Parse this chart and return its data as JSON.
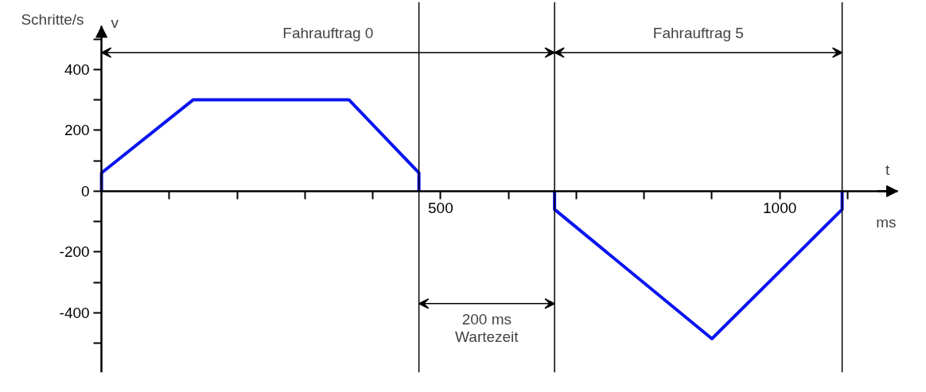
{
  "chart_data": {
    "type": "line",
    "xlabel": "t",
    "ylabel": "v",
    "annotations": [
      "Schritte/s",
      "ms",
      "Fahrauftrag 0",
      "Fahrauftrag 5",
      "200 ms\nWartezeit"
    ],
    "xlim": [
      0,
      1174
    ],
    "ylim": [
      -596,
      542
    ],
    "xticks": [
      {
        "value": 100,
        "label": null
      },
      {
        "value": 200,
        "label": null
      },
      {
        "value": 300,
        "label": null
      },
      {
        "value": 400,
        "label": null
      },
      500,
      {
        "value": 600,
        "label": null
      },
      {
        "value": 700,
        "label": null
      },
      {
        "value": 800,
        "label": null
      },
      {
        "value": 900,
        "label": null
      },
      1000,
      {
        "value": 1100,
        "label": null
      }
    ],
    "yticks": [
      {
        "value": -500,
        "label": null
      },
      -400,
      {
        "value": -300,
        "label": null
      },
      -200,
      {
        "value": -100,
        "label": null
      },
      0,
      {
        "value": 100,
        "label": null
      },
      200,
      {
        "value": 300,
        "label": null
      },
      400,
      {
        "value": 500,
        "label": null
      }
    ],
    "series": [
      {
        "color": "#0a14f0",
        "x": [
          0,
          0,
          135,
          365,
          468,
          468,
          null,
          668,
          668,
          900,
          1092,
          1092
        ],
        "values": [
          0,
          60,
          300,
          300,
          60,
          0,
          null,
          0,
          -60,
          -485,
          -60,
          0
        ]
      }
    ],
    "ref_lines": [
      {
        "axis": "x",
        "value": 468,
        "label": null,
        "color": "#000000"
      },
      {
        "axis": "x",
        "value": 668,
        "label": null,
        "color": "#000000"
      },
      {
        "axis": "x",
        "value": 1092,
        "label": null,
        "color": "#000000"
      }
    ],
    "grid": false,
    "marker": "none",
    "line_style": "solid"
  }
}
